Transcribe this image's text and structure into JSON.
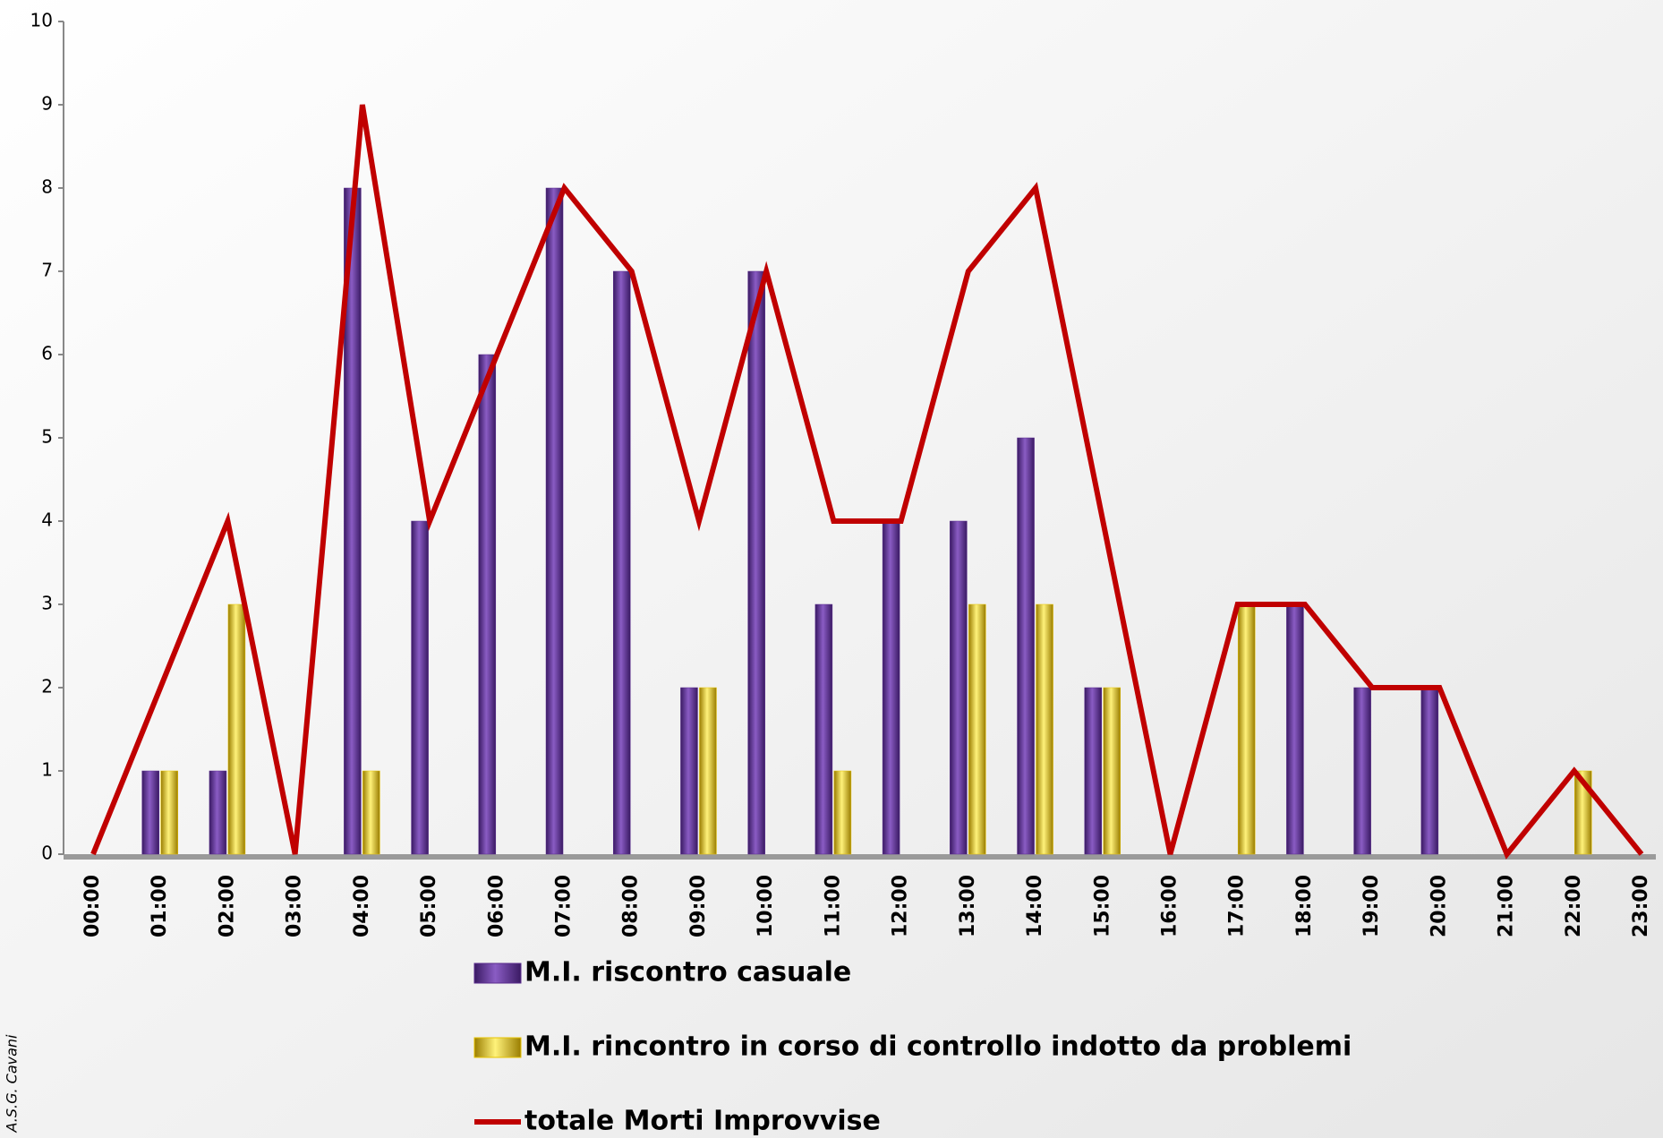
{
  "chart_data": {
    "type": "bar-line",
    "categories": [
      "00:00",
      "01:00",
      "02:00",
      "03:00",
      "04:00",
      "05:00",
      "06:00",
      "07:00",
      "08:00",
      "09:00",
      "10:00",
      "11:00",
      "12:00",
      "13:00",
      "14:00",
      "15:00",
      "16:00",
      "17:00",
      "18:00",
      "19:00",
      "20:00",
      "21:00",
      "22:00",
      "23:00"
    ],
    "series": [
      {
        "name": "M.I. riscontro casuale",
        "type": "bar",
        "color": "#5b2d8e",
        "values": [
          0,
          1,
          1,
          0,
          8,
          4,
          6,
          8,
          7,
          2,
          7,
          3,
          4,
          4,
          5,
          2,
          0,
          0,
          3,
          2,
          2,
          0,
          0,
          0
        ]
      },
      {
        "name": "M.I. rincontro in corso di controllo indotto da problemi",
        "type": "bar",
        "color": "#e8c400",
        "values": [
          0,
          1,
          3,
          0,
          1,
          0,
          0,
          0,
          0,
          2,
          0,
          1,
          0,
          3,
          3,
          2,
          0,
          3,
          0,
          0,
          0,
          0,
          1,
          0
        ]
      },
      {
        "name": "totale Morti Improvvise",
        "type": "line",
        "color": "#c00000",
        "values": [
          0,
          2,
          4,
          0,
          9,
          4,
          6,
          8,
          7,
          4,
          7,
          4,
          4,
          7,
          8,
          4,
          0,
          3,
          3,
          2,
          2,
          0,
          1,
          0
        ]
      }
    ],
    "ylim": [
      0,
      10
    ],
    "yticks": [
      0,
      1,
      2,
      3,
      4,
      5,
      6,
      7,
      8,
      9,
      10
    ],
    "legend": "bottom",
    "watermark": "A.S.G. Cavani"
  }
}
